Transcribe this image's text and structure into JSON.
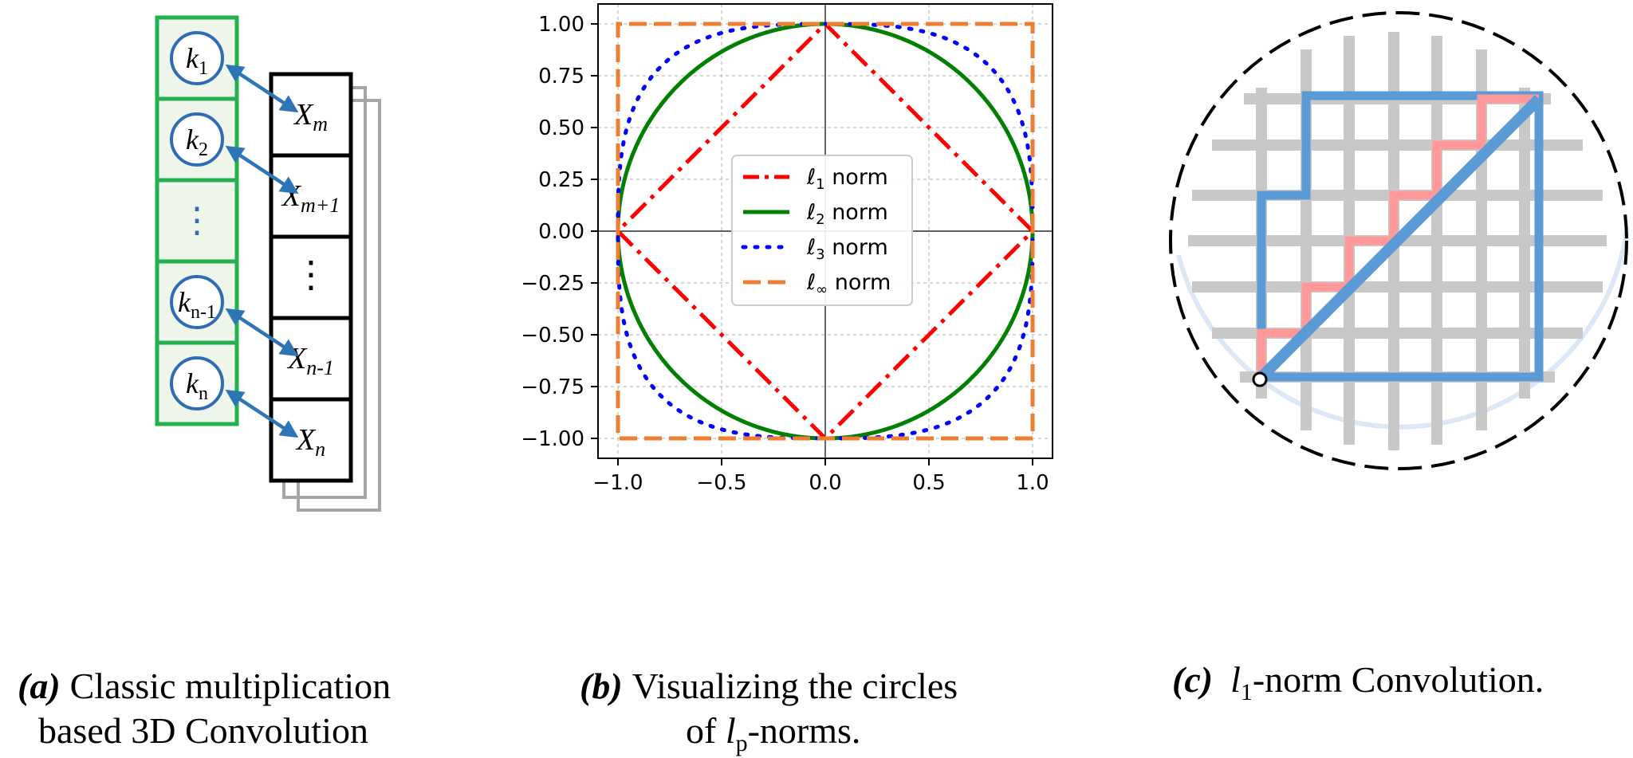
{
  "panel_a": {
    "kernels": [
      {
        "main": "k",
        "sub": "1"
      },
      {
        "main": "k",
        "sub": "2"
      },
      {
        "main": "⋮",
        "sub": ""
      },
      {
        "main": "k",
        "sub": "n-1"
      },
      {
        "main": "k",
        "sub": "n"
      }
    ],
    "inputs": [
      {
        "main": "X",
        "sub": "m"
      },
      {
        "main": "X",
        "sub": "m+1"
      },
      {
        "main": "⋮",
        "sub": ""
      },
      {
        "main": "X",
        "sub": "n-1"
      },
      {
        "main": "X",
        "sub": "n"
      }
    ],
    "caption_label": "(a)",
    "caption_line1": "Classic multiplication",
    "caption_line2": "based 3D Convolution",
    "colors": {
      "kernel_border": "#22b14c",
      "kernel_fill": "#eef5ea",
      "circle": "#2e6db4",
      "arrow": "#2e75b6",
      "stack": "#a6a6a6"
    }
  },
  "chart_data": {
    "type": "line",
    "xlim": [
      -1.0,
      1.0
    ],
    "ylim": [
      -1.0,
      1.0
    ],
    "xticks": [
      "−1.0",
      "−0.5",
      "0.0",
      "0.5",
      "1.0"
    ],
    "yticks": [
      "1.00",
      "0.75",
      "0.50",
      "0.25",
      "0.00",
      "−0.25",
      "−0.50",
      "−0.75",
      "−1.00"
    ],
    "grid": true,
    "legend_position": "center",
    "series": [
      {
        "name": "ℓ",
        "sub": "1",
        "suffix": " norm",
        "p": 1,
        "color": "#ff0000",
        "style": "dashdot"
      },
      {
        "name": "ℓ",
        "sub": "2",
        "suffix": " norm",
        "p": 2,
        "color": "#008000",
        "style": "solid"
      },
      {
        "name": "ℓ",
        "sub": "3",
        "suffix": " norm",
        "p": 3,
        "color": "#0000ff",
        "style": "dotted"
      },
      {
        "name": "ℓ",
        "sub": "∞",
        "suffix": " norm",
        "p": "inf",
        "color": "#ed7d31",
        "style": "dashed"
      }
    ]
  },
  "panel_b": {
    "caption_label": "(b)",
    "caption_line1": "Visualizing the circles",
    "caption_line2_pre": "of ",
    "caption_line2_l": "l",
    "caption_line2_sub": "p",
    "caption_line2_post": "-norms."
  },
  "panel_c": {
    "caption_label": "(c)",
    "caption_l": "l",
    "caption_sub": "1",
    "caption_post": "-norm  Convolution.",
    "colors": {
      "grid": "#c8c8c8",
      "blue": "#5b9bd5",
      "pink": "#ff9999",
      "circle": "#000000"
    }
  }
}
